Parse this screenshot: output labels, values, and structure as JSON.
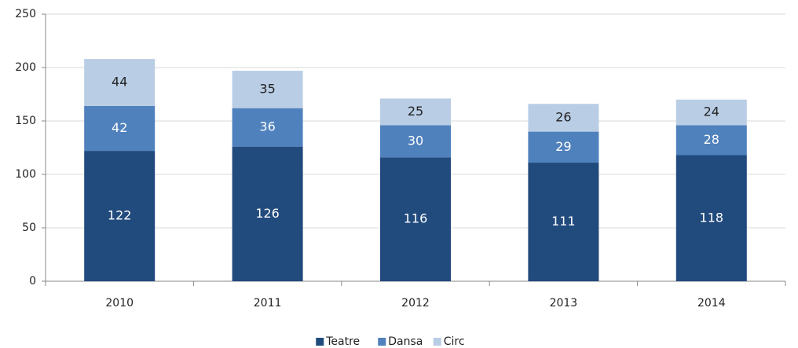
{
  "chart_data": {
    "type": "stacked_bar",
    "categories": [
      "2010",
      "2011",
      "2012",
      "2013",
      "2014"
    ],
    "series": [
      {
        "name": "Teatre",
        "color": "#214a7d",
        "label_color": "#ffffff",
        "values": [
          122,
          126,
          116,
          111,
          118
        ]
      },
      {
        "name": "Dansa",
        "color": "#4f81bd",
        "label_color": "#ffffff",
        "values": [
          42,
          36,
          30,
          29,
          28
        ]
      },
      {
        "name": "Circ",
        "color": "#b9cde5",
        "label_color": "#222222",
        "values": [
          44,
          35,
          25,
          26,
          24
        ]
      }
    ],
    "ylim": [
      0,
      250
    ],
    "yticks": [
      0,
      50,
      100,
      150,
      200,
      250
    ],
    "grid": true,
    "legend": "bottom"
  }
}
